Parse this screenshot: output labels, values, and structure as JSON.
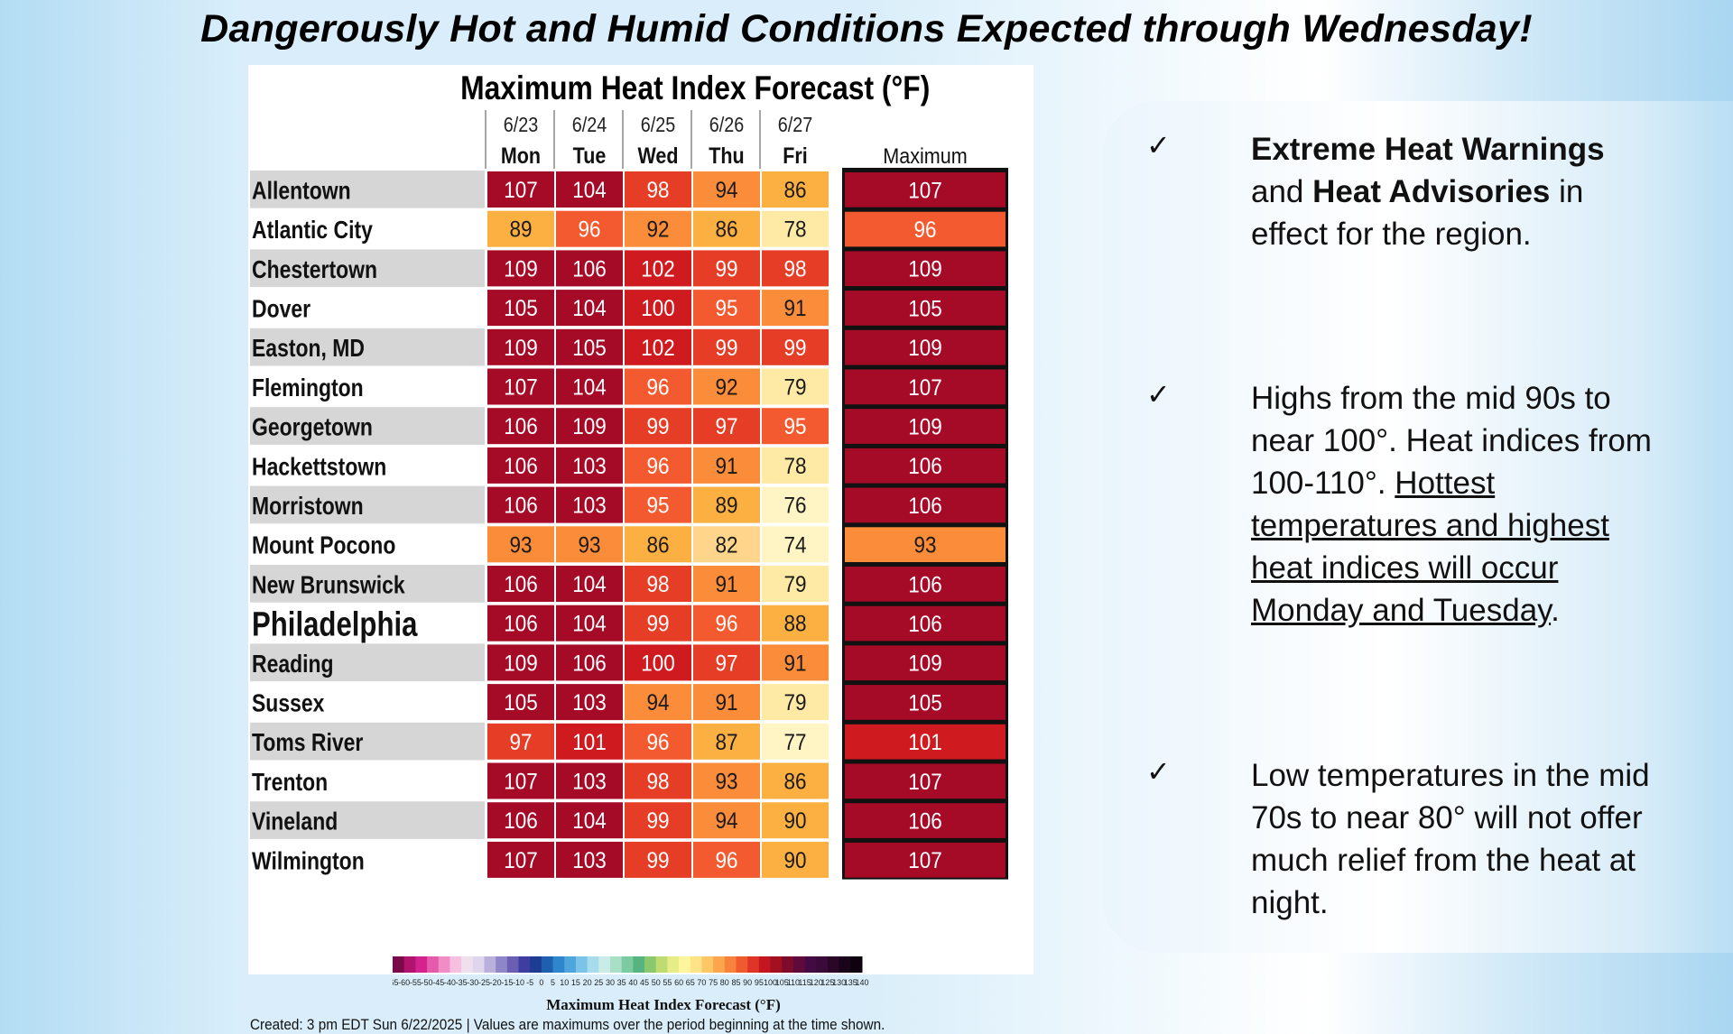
{
  "banner": "Dangerously Hot and Humid Conditions Expected through Wednesday!",
  "chart_data": {
    "type": "table",
    "title": "Maximum Heat Index Forecast (°F)",
    "dates": [
      "6/23",
      "6/24",
      "6/25",
      "6/26",
      "6/27"
    ],
    "days": [
      "Mon",
      "Tue",
      "Wed",
      "Thu",
      "Fri"
    ],
    "max_header": "Maximum",
    "rows": [
      {
        "city": "Allentown",
        "values": [
          107,
          104,
          98,
          94,
          86
        ],
        "max": 107
      },
      {
        "city": "Atlantic City",
        "values": [
          89,
          96,
          92,
          86,
          78
        ],
        "max": 96
      },
      {
        "city": "Chestertown",
        "values": [
          109,
          106,
          102,
          99,
          98
        ],
        "max": 109
      },
      {
        "city": "Dover",
        "values": [
          105,
          104,
          100,
          95,
          91
        ],
        "max": 105
      },
      {
        "city": "Easton, MD",
        "values": [
          109,
          105,
          102,
          99,
          99
        ],
        "max": 109
      },
      {
        "city": "Flemington",
        "values": [
          107,
          104,
          96,
          92,
          79
        ],
        "max": 107
      },
      {
        "city": "Georgetown",
        "values": [
          106,
          109,
          99,
          97,
          95
        ],
        "max": 109
      },
      {
        "city": "Hackettstown",
        "values": [
          106,
          103,
          96,
          91,
          78
        ],
        "max": 106
      },
      {
        "city": "Morristown",
        "values": [
          106,
          103,
          95,
          89,
          76
        ],
        "max": 106
      },
      {
        "city": "Mount Pocono",
        "values": [
          93,
          93,
          86,
          82,
          74
        ],
        "max": 93
      },
      {
        "city": "New Brunswick",
        "values": [
          106,
          104,
          98,
          91,
          79
        ],
        "max": 106
      },
      {
        "city": "Philadelphia",
        "values": [
          106,
          104,
          99,
          96,
          88
        ],
        "max": 106,
        "emphasis": true
      },
      {
        "city": "Reading",
        "values": [
          109,
          106,
          100,
          97,
          91
        ],
        "max": 109
      },
      {
        "city": "Sussex",
        "values": [
          105,
          103,
          94,
          91,
          79
        ],
        "max": 105
      },
      {
        "city": "Toms River",
        "values": [
          97,
          101,
          96,
          87,
          77
        ],
        "max": 101
      },
      {
        "city": "Trenton",
        "values": [
          107,
          103,
          98,
          93,
          86
        ],
        "max": 107
      },
      {
        "city": "Vineland",
        "values": [
          106,
          104,
          99,
          94,
          90
        ],
        "max": 106
      },
      {
        "city": "Wilmington",
        "values": [
          107,
          103,
          99,
          96,
          90
        ],
        "max": 107
      }
    ],
    "colorbar_ticks": [
      "-65",
      "-60",
      "-55",
      "-50",
      "-45",
      "-40",
      "-35",
      "-30",
      "-25",
      "-20",
      "-15",
      "-10",
      "-5",
      "0",
      "5",
      "10",
      "15",
      "20",
      "25",
      "30",
      "35",
      "40",
      "45",
      "50",
      "55",
      "60",
      "65",
      "70",
      "75",
      "80",
      "85",
      "90",
      "95",
      "100",
      "105",
      "110",
      "115",
      "120",
      "125",
      "130",
      "135",
      "140"
    ],
    "colorbar_label": "Maximum Heat Index Forecast (°F)",
    "footnote": "Created: 3 pm EDT Sun 6/22/2025  |  Values are maximums over the period beginning at the time shown."
  },
  "bullets": [
    {
      "check": "✓",
      "parts": [
        {
          "t": "Extreme Heat Warnings",
          "b": true
        },
        {
          "t": " and "
        },
        {
          "t": "Heat Advisories",
          "b": true
        },
        {
          "t": " in effect for the region."
        }
      ]
    },
    {
      "check": "✓",
      "parts": [
        {
          "t": "Highs from the mid 90s to near 100°. Heat indices from 100-110°. "
        },
        {
          "t": "Hottest temperatures and highest heat indices will occur Monday and Tuesday",
          "u": true
        },
        {
          "t": "."
        }
      ]
    },
    {
      "check": "✓",
      "parts": [
        {
          "t": "Low temperatures in the mid 70s to near 80° will not offer much relief from the heat at night."
        }
      ]
    }
  ]
}
